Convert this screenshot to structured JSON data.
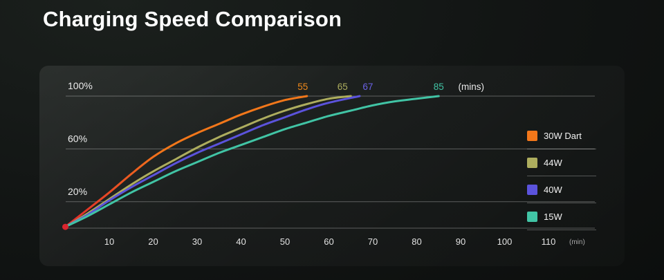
{
  "page": {
    "title": "Charging Speed Comparison"
  },
  "chart_data": {
    "type": "line",
    "title": "Charging Speed Comparison",
    "x_unit_label": "(min)",
    "end_time_unit_label": "(mins)",
    "x_ticks": [
      10,
      20,
      30,
      40,
      50,
      60,
      70,
      80,
      90,
      100,
      110
    ],
    "y_ticks": [
      {
        "label": "100%",
        "value": 100
      },
      {
        "label": "60%",
        "value": 60
      },
      {
        "label": "20%",
        "value": 20
      }
    ],
    "xlim": [
      0,
      120
    ],
    "ylim": [
      0,
      100
    ],
    "grid": true,
    "legend_position": "right",
    "grid_color": "rgba(255,255,255,0.30)",
    "start_dot": {
      "x": 0,
      "y": 1,
      "color": "#D9252E"
    },
    "series": [
      {
        "name": "30W Dart",
        "color": "#F2771A",
        "color_start": "#DF262D",
        "full_charge_min": 55,
        "points": [
          [
            0,
            1
          ],
          [
            5,
            14
          ],
          [
            10,
            27
          ],
          [
            15,
            41
          ],
          [
            20,
            54
          ],
          [
            25,
            64
          ],
          [
            30,
            72
          ],
          [
            35,
            79
          ],
          [
            40,
            86
          ],
          [
            45,
            92
          ],
          [
            50,
            97
          ],
          [
            55,
            100
          ]
        ]
      },
      {
        "name": "44W",
        "color": "#ADAD5E",
        "full_charge_min": 65,
        "points": [
          [
            0,
            1
          ],
          [
            5,
            11
          ],
          [
            10,
            22
          ],
          [
            15,
            33
          ],
          [
            20,
            43
          ],
          [
            25,
            52
          ],
          [
            30,
            61
          ],
          [
            35,
            69
          ],
          [
            40,
            76
          ],
          [
            45,
            83
          ],
          [
            50,
            89
          ],
          [
            55,
            94
          ],
          [
            60,
            98
          ],
          [
            65,
            100
          ]
        ]
      },
      {
        "name": "40W",
        "color": "#5B53DC",
        "full_charge_min": 67,
        "points": [
          [
            0,
            1
          ],
          [
            5,
            10
          ],
          [
            10,
            21
          ],
          [
            15,
            31
          ],
          [
            20,
            40
          ],
          [
            25,
            49
          ],
          [
            30,
            57
          ],
          [
            35,
            64
          ],
          [
            40,
            71
          ],
          [
            45,
            78
          ],
          [
            50,
            84
          ],
          [
            55,
            90
          ],
          [
            60,
            95
          ],
          [
            67,
            100
          ]
        ]
      },
      {
        "name": "15W",
        "color": "#41C4A5",
        "full_charge_min": 85,
        "points": [
          [
            0,
            1
          ],
          [
            5,
            9
          ],
          [
            10,
            18
          ],
          [
            15,
            27
          ],
          [
            20,
            35
          ],
          [
            25,
            43
          ],
          [
            30,
            50
          ],
          [
            35,
            57
          ],
          [
            40,
            63
          ],
          [
            45,
            69
          ],
          [
            50,
            75
          ],
          [
            55,
            80
          ],
          [
            60,
            85
          ],
          [
            65,
            89
          ],
          [
            70,
            93
          ],
          [
            75,
            96
          ],
          [
            80,
            98
          ],
          [
            85,
            100
          ]
        ]
      }
    ],
    "annotations": [
      {
        "text": "55",
        "color": "#F0891A",
        "min": 55,
        "dx": -6
      },
      {
        "text": "65",
        "color": "#ADAD5E",
        "min": 65,
        "dx": -12
      },
      {
        "text": "67",
        "color": "#6A62E6",
        "min": 67,
        "dx": 12
      },
      {
        "text": "85",
        "color": "#41C4A5",
        "min": 85,
        "dx": 0
      },
      {
        "text": "(mins)",
        "color": "#E9E9E9",
        "min": 85,
        "dx": 47
      }
    ]
  }
}
